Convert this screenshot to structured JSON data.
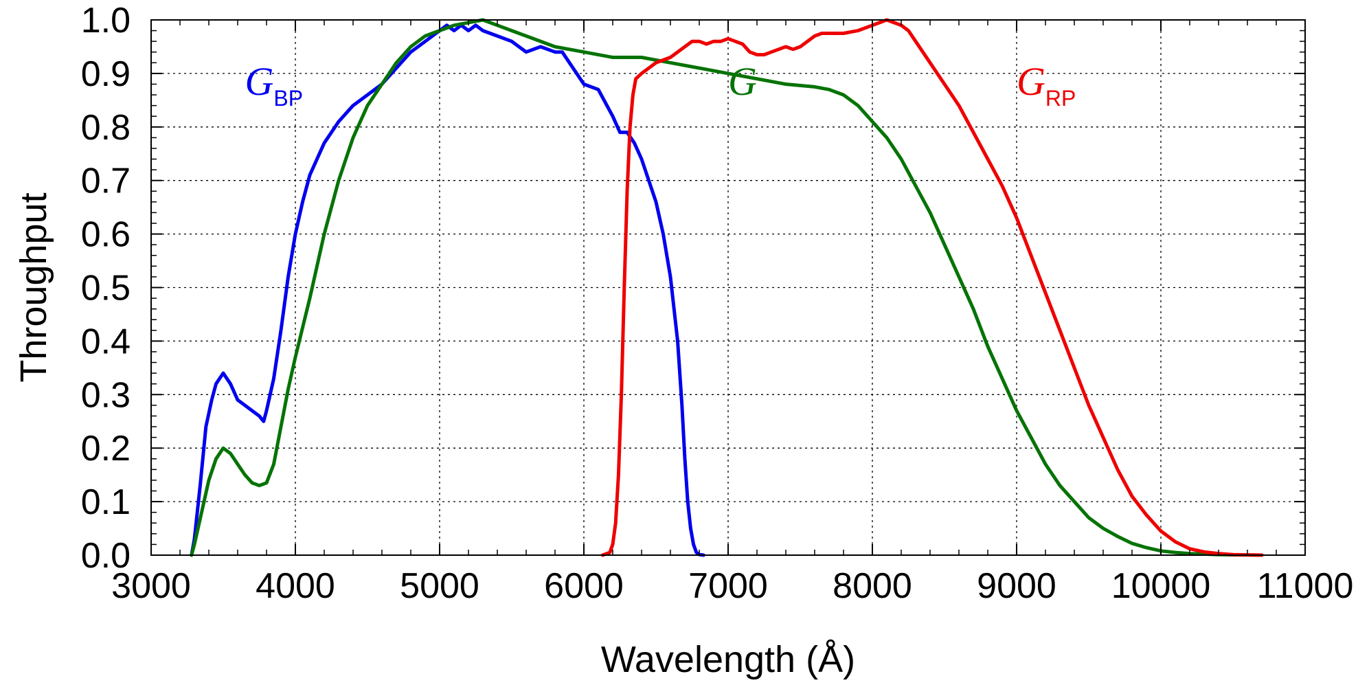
{
  "chart_data": {
    "type": "line",
    "title": "",
    "xlabel": "Wavelength (Å)",
    "ylabel": "Throughput",
    "xlim": [
      3000,
      11000
    ],
    "ylim": [
      0.0,
      1.0
    ],
    "grid": true,
    "xticks": [
      3000,
      4000,
      5000,
      6000,
      7000,
      8000,
      9000,
      10000,
      11000
    ],
    "xtick_labels": [
      "3000",
      "4000",
      "5000",
      "6000",
      "7000",
      "8000",
      "9000",
      "10000",
      "11000"
    ],
    "yticks": [
      0.0,
      0.1,
      0.2,
      0.3,
      0.4,
      0.5,
      0.6,
      0.7,
      0.8,
      0.9,
      1.0
    ],
    "ytick_labels": [
      "0.0",
      "0.1",
      "0.2",
      "0.3",
      "0.4",
      "0.5",
      "0.6",
      "0.7",
      "0.8",
      "0.9",
      "1.0"
    ],
    "series": [
      {
        "label_main": "G",
        "label_sub": "BP",
        "color": "#0000ee",
        "label_x": 3650,
        "label_y": 0.86,
        "x": [
          3280,
          3300,
          3340,
          3380,
          3420,
          3450,
          3500,
          3550,
          3600,
          3650,
          3700,
          3750,
          3780,
          3800,
          3850,
          3900,
          3950,
          4000,
          4050,
          4100,
          4150,
          4200,
          4300,
          4400,
          4500,
          4600,
          4700,
          4800,
          4900,
          5000,
          5050,
          5100,
          5150,
          5200,
          5250,
          5300,
          5400,
          5500,
          5550,
          5600,
          5700,
          5800,
          5850,
          5900,
          5950,
          6000,
          6100,
          6200,
          6250,
          6300,
          6350,
          6400,
          6450,
          6500,
          6550,
          6600,
          6650,
          6680,
          6700,
          6720,
          6740,
          6760,
          6780,
          6800,
          6830
        ],
        "y": [
          0.0,
          0.03,
          0.13,
          0.24,
          0.29,
          0.32,
          0.34,
          0.32,
          0.29,
          0.28,
          0.27,
          0.26,
          0.25,
          0.27,
          0.33,
          0.42,
          0.52,
          0.6,
          0.66,
          0.71,
          0.74,
          0.77,
          0.81,
          0.84,
          0.86,
          0.88,
          0.91,
          0.94,
          0.96,
          0.98,
          0.99,
          0.98,
          0.99,
          0.98,
          0.99,
          0.98,
          0.97,
          0.96,
          0.95,
          0.94,
          0.95,
          0.94,
          0.94,
          0.92,
          0.9,
          0.88,
          0.87,
          0.82,
          0.79,
          0.79,
          0.77,
          0.74,
          0.7,
          0.66,
          0.6,
          0.52,
          0.4,
          0.28,
          0.18,
          0.1,
          0.05,
          0.02,
          0.005,
          0.001,
          0.0
        ]
      },
      {
        "label_main": "G",
        "label_sub": "",
        "color": "#067306",
        "label_x": 7000,
        "label_y": 0.86,
        "x": [
          3280,
          3300,
          3350,
          3400,
          3450,
          3500,
          3550,
          3600,
          3650,
          3700,
          3750,
          3800,
          3850,
          3900,
          3950,
          4000,
          4100,
          4200,
          4300,
          4400,
          4500,
          4600,
          4700,
          4800,
          4900,
          5000,
          5100,
          5200,
          5300,
          5400,
          5500,
          5600,
          5800,
          6000,
          6200,
          6400,
          6600,
          6800,
          7000,
          7200,
          7400,
          7600,
          7700,
          7800,
          7900,
          8000,
          8100,
          8200,
          8300,
          8400,
          8500,
          8600,
          8700,
          8800,
          8900,
          9000,
          9100,
          9200,
          9300,
          9400,
          9500,
          9600,
          9700,
          9800,
          9900,
          10000,
          10100,
          10200,
          10300,
          10400,
          10500,
          10600,
          10700
        ],
        "y": [
          0.0,
          0.02,
          0.08,
          0.14,
          0.18,
          0.2,
          0.19,
          0.17,
          0.15,
          0.135,
          0.13,
          0.135,
          0.17,
          0.24,
          0.31,
          0.37,
          0.48,
          0.6,
          0.7,
          0.78,
          0.84,
          0.88,
          0.92,
          0.95,
          0.97,
          0.98,
          0.99,
          0.995,
          1.0,
          0.99,
          0.98,
          0.97,
          0.95,
          0.94,
          0.93,
          0.93,
          0.92,
          0.91,
          0.9,
          0.89,
          0.88,
          0.875,
          0.87,
          0.86,
          0.84,
          0.81,
          0.78,
          0.74,
          0.69,
          0.64,
          0.58,
          0.52,
          0.46,
          0.39,
          0.33,
          0.27,
          0.22,
          0.17,
          0.13,
          0.1,
          0.07,
          0.05,
          0.035,
          0.022,
          0.014,
          0.008,
          0.005,
          0.003,
          0.002,
          0.001,
          0.0005,
          0.0002,
          0.0
        ]
      },
      {
        "label_main": "G",
        "label_sub": "RP",
        "color": "#ee0000",
        "label_x": 9000,
        "label_y": 0.86,
        "x": [
          6130,
          6180,
          6200,
          6220,
          6240,
          6260,
          6280,
          6300,
          6320,
          6340,
          6360,
          6400,
          6450,
          6500,
          6550,
          6600,
          6650,
          6700,
          6750,
          6800,
          6850,
          6900,
          6950,
          7000,
          7050,
          7100,
          7150,
          7200,
          7250,
          7300,
          7350,
          7400,
          7450,
          7500,
          7550,
          7600,
          7650,
          7700,
          7800,
          7900,
          8000,
          8050,
          8100,
          8150,
          8200,
          8250,
          8300,
          8400,
          8500,
          8600,
          8700,
          8800,
          8900,
          9000,
          9100,
          9200,
          9300,
          9400,
          9500,
          9600,
          9700,
          9800,
          9900,
          10000,
          10100,
          10200,
          10300,
          10400,
          10500,
          10600,
          10700
        ],
        "y": [
          0.0,
          0.005,
          0.02,
          0.06,
          0.15,
          0.3,
          0.5,
          0.68,
          0.8,
          0.86,
          0.89,
          0.9,
          0.91,
          0.92,
          0.925,
          0.93,
          0.94,
          0.95,
          0.96,
          0.96,
          0.955,
          0.96,
          0.96,
          0.965,
          0.96,
          0.955,
          0.94,
          0.935,
          0.935,
          0.94,
          0.945,
          0.95,
          0.945,
          0.95,
          0.96,
          0.97,
          0.975,
          0.975,
          0.975,
          0.98,
          0.99,
          0.995,
          1.0,
          0.995,
          0.99,
          0.98,
          0.96,
          0.92,
          0.88,
          0.84,
          0.79,
          0.74,
          0.69,
          0.63,
          0.56,
          0.49,
          0.42,
          0.35,
          0.28,
          0.22,
          0.16,
          0.11,
          0.075,
          0.045,
          0.025,
          0.012,
          0.006,
          0.003,
          0.001,
          0.0005,
          0.0
        ]
      }
    ]
  }
}
